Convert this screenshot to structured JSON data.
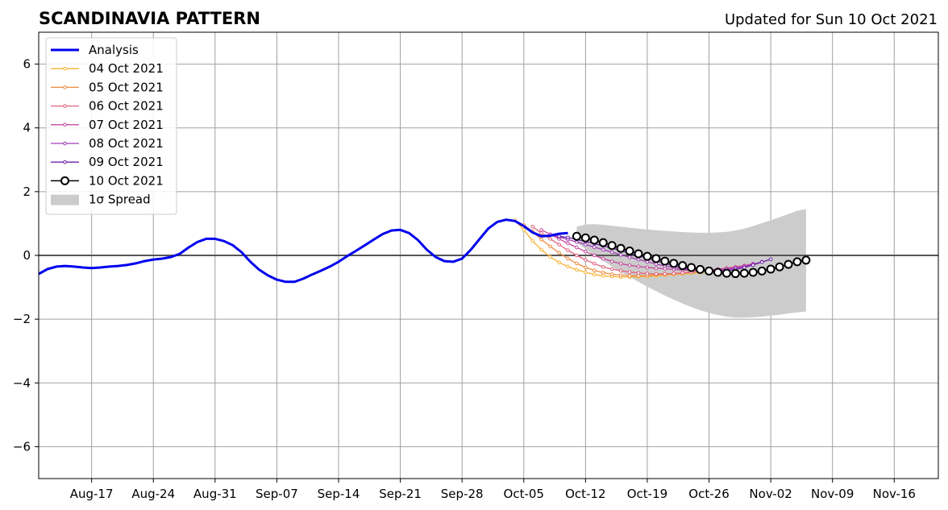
{
  "chart_data": {
    "type": "line",
    "title": "SCANDINAVIA PATTERN",
    "subtitle": "Updated for Sun 10 Oct 2021",
    "xlim": [
      "2021-08-11",
      "2021-11-21"
    ],
    "ylim": [
      -7,
      7
    ],
    "x_ticks": [
      {
        "date": "2021-08-17",
        "label": "Aug-17"
      },
      {
        "date": "2021-08-24",
        "label": "Aug-24"
      },
      {
        "date": "2021-08-31",
        "label": "Aug-31"
      },
      {
        "date": "2021-09-07",
        "label": "Sep-07"
      },
      {
        "date": "2021-09-14",
        "label": "Sep-14"
      },
      {
        "date": "2021-09-21",
        "label": "Sep-21"
      },
      {
        "date": "2021-09-28",
        "label": "Sep-28"
      },
      {
        "date": "2021-10-05",
        "label": "Oct-05"
      },
      {
        "date": "2021-10-12",
        "label": "Oct-12"
      },
      {
        "date": "2021-10-19",
        "label": "Oct-19"
      },
      {
        "date": "2021-10-26",
        "label": "Oct-26"
      },
      {
        "date": "2021-11-02",
        "label": "Nov-02"
      },
      {
        "date": "2021-11-09",
        "label": "Nov-09"
      },
      {
        "date": "2021-11-16",
        "label": "Nov-16"
      }
    ],
    "y_ticks": [
      {
        "value": 6,
        "label": "6"
      },
      {
        "value": 4,
        "label": "4"
      },
      {
        "value": 2,
        "label": "2"
      },
      {
        "value": 0,
        "label": "0"
      },
      {
        "value": -2,
        "label": "−2"
      },
      {
        "value": -4,
        "label": "−4"
      },
      {
        "value": -6,
        "label": "−6"
      }
    ],
    "grid": true,
    "legend_position": "top-left",
    "analysis": {
      "name": "Analysis",
      "color": "#0000ee",
      "x": [
        "2021-08-11",
        "2021-08-12",
        "2021-08-13",
        "2021-08-14",
        "2021-08-15",
        "2021-08-16",
        "2021-08-17",
        "2021-08-18",
        "2021-08-19",
        "2021-08-20",
        "2021-08-21",
        "2021-08-22",
        "2021-08-23",
        "2021-08-24",
        "2021-08-25",
        "2021-08-26",
        "2021-08-27",
        "2021-08-28",
        "2021-08-29",
        "2021-08-30",
        "2021-08-31",
        "2021-09-01",
        "2021-09-02",
        "2021-09-03",
        "2021-09-04",
        "2021-09-05",
        "2021-09-06",
        "2021-09-07",
        "2021-09-08",
        "2021-09-09",
        "2021-09-10",
        "2021-09-11",
        "2021-09-12",
        "2021-09-13",
        "2021-09-14",
        "2021-09-15",
        "2021-09-16",
        "2021-09-17",
        "2021-09-18",
        "2021-09-19",
        "2021-09-20",
        "2021-09-21",
        "2021-09-22",
        "2021-09-23",
        "2021-09-24",
        "2021-09-25",
        "2021-09-26",
        "2021-09-27",
        "2021-09-28",
        "2021-09-29",
        "2021-09-30",
        "2021-10-01",
        "2021-10-02",
        "2021-10-03",
        "2021-10-04",
        "2021-10-05",
        "2021-10-06",
        "2021-10-07",
        "2021-10-08",
        "2021-10-09",
        "2021-10-10"
      ],
      "y": [
        -0.58,
        -0.43,
        -0.35,
        -0.33,
        -0.35,
        -0.38,
        -0.4,
        -0.38,
        -0.35,
        -0.33,
        -0.3,
        -0.25,
        -0.18,
        -0.13,
        -0.1,
        -0.05,
        0.05,
        0.25,
        0.42,
        0.52,
        0.52,
        0.45,
        0.32,
        0.1,
        -0.2,
        -0.45,
        -0.63,
        -0.76,
        -0.83,
        -0.83,
        -0.73,
        -0.6,
        -0.48,
        -0.35,
        -0.2,
        -0.02,
        0.15,
        0.32,
        0.5,
        0.67,
        0.78,
        0.8,
        0.7,
        0.48,
        0.18,
        -0.05,
        -0.18,
        -0.2,
        -0.1,
        0.18,
        0.52,
        0.85,
        1.05,
        1.12,
        1.08,
        0.92,
        0.72,
        0.6,
        0.62,
        0.68,
        0.7
      ]
    },
    "forecasts": [
      {
        "name": "04 Oct 2021",
        "color": "#f9b233",
        "x_start": "2021-10-04",
        "y": [
          1.1,
          0.8,
          0.45,
          0.18,
          -0.05,
          -0.22,
          -0.35,
          -0.45,
          -0.53,
          -0.6,
          -0.64,
          -0.66,
          -0.68,
          -0.68,
          -0.67,
          -0.66,
          -0.64,
          -0.62,
          -0.6,
          -0.58,
          -0.56,
          -0.54,
          -0.52,
          -0.5,
          -0.48
        ]
      },
      {
        "name": "05 Oct 2021",
        "color": "#f08a40",
        "x_start": "2021-10-05",
        "y": [
          0.95,
          0.75,
          0.5,
          0.28,
          0.08,
          -0.1,
          -0.25,
          -0.38,
          -0.47,
          -0.54,
          -0.59,
          -0.62,
          -0.64,
          -0.64,
          -0.63,
          -0.61,
          -0.59,
          -0.57,
          -0.55,
          -0.52,
          -0.5,
          -0.47,
          -0.44,
          -0.41,
          -0.38
        ]
      },
      {
        "name": "06 Oct 2021",
        "color": "#e0607e",
        "x_start": "2021-10-06",
        "y": [
          0.9,
          0.7,
          0.52,
          0.34,
          0.16,
          0.0,
          -0.14,
          -0.26,
          -0.36,
          -0.43,
          -0.48,
          -0.52,
          -0.55,
          -0.57,
          -0.58,
          -0.58,
          -0.57,
          -0.55,
          -0.53,
          -0.5,
          -0.47,
          -0.43,
          -0.4,
          -0.36,
          -0.32
        ]
      },
      {
        "name": "07 Oct 2021",
        "color": "#c4489c",
        "x_start": "2021-10-07",
        "y": [
          0.8,
          0.66,
          0.52,
          0.38,
          0.25,
          0.12,
          0.0,
          -0.1,
          -0.19,
          -0.26,
          -0.31,
          -0.35,
          -0.38,
          -0.4,
          -0.42,
          -0.44,
          -0.46,
          -0.47,
          -0.47,
          -0.46,
          -0.44,
          -0.41,
          -0.37,
          -0.32,
          -0.26
        ]
      },
      {
        "name": "08 Oct 2021",
        "color": "#a23cb8",
        "x_start": "2021-10-08",
        "y": [
          0.65,
          0.58,
          0.5,
          0.42,
          0.34,
          0.26,
          0.18,
          0.1,
          0.02,
          -0.06,
          -0.13,
          -0.2,
          -0.27,
          -0.33,
          -0.38,
          -0.42,
          -0.45,
          -0.47,
          -0.47,
          -0.46,
          -0.44,
          -0.4,
          -0.35,
          -0.28,
          -0.2
        ]
      },
      {
        "name": "09 Oct 2021",
        "color": "#6a1fa8",
        "x_start": "2021-10-09",
        "y": [
          0.6,
          0.56,
          0.5,
          0.44,
          0.37,
          0.3,
          0.23,
          0.15,
          0.07,
          -0.01,
          -0.09,
          -0.17,
          -0.25,
          -0.32,
          -0.38,
          -0.43,
          -0.47,
          -0.5,
          -0.5,
          -0.48,
          -0.44,
          -0.38,
          -0.3,
          -0.21,
          -0.12
        ]
      }
    ],
    "current_forecast": {
      "name": "10 Oct 2021",
      "color": "#000000",
      "x_start": "2021-10-11",
      "y": [
        0.6,
        0.55,
        0.48,
        0.4,
        0.31,
        0.22,
        0.14,
        0.05,
        -0.03,
        -0.1,
        -0.18,
        -0.25,
        -0.32,
        -0.38,
        -0.44,
        -0.49,
        -0.53,
        -0.56,
        -0.57,
        -0.56,
        -0.53,
        -0.49,
        -0.43,
        -0.36,
        -0.28,
        -0.2,
        -0.15
      ]
    },
    "spread": {
      "name": "1σ Spread",
      "color": "#cccccc",
      "x_start": "2021-10-11",
      "upper": [
        0.9,
        0.97,
        0.98,
        0.96,
        0.93,
        0.9,
        0.87,
        0.84,
        0.81,
        0.79,
        0.77,
        0.75,
        0.73,
        0.72,
        0.71,
        0.71,
        0.72,
        0.74,
        0.78,
        0.84,
        0.92,
        1.01,
        1.1,
        1.2,
        1.3,
        1.4,
        1.45
      ],
      "lower": [
        0.4,
        0.2,
        0.0,
        -0.17,
        -0.35,
        -0.52,
        -0.68,
        -0.83,
        -0.98,
        -1.12,
        -1.26,
        -1.39,
        -1.51,
        -1.62,
        -1.72,
        -1.8,
        -1.87,
        -1.92,
        -1.95,
        -1.95,
        -1.94,
        -1.92,
        -1.89,
        -1.86,
        -1.82,
        -1.79,
        -1.76
      ]
    }
  }
}
